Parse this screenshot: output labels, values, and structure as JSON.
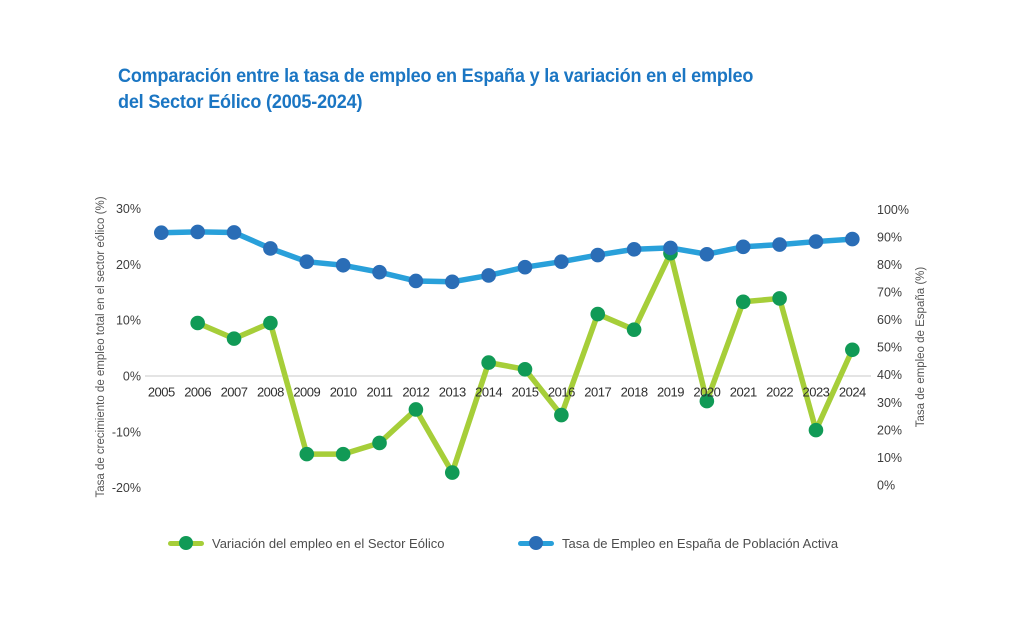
{
  "title": {
    "line1": "Comparación entre la tasa de empleo en España y la variación en el empleo",
    "line2": "del Sector Eólico (2005-2024)"
  },
  "colors": {
    "title_blue": "#1b76c3",
    "wind_line": "#a6ce39",
    "wind_marker": "#119a56",
    "employment_line": "#29a0da",
    "employment_marker": "#2a6db6",
    "gridline": "#c9c9c9",
    "tick_text": "#3d3d3d",
    "year_text": "#2f2f2f"
  },
  "chart_data": {
    "type": "line",
    "x": [
      2005,
      2006,
      2007,
      2008,
      2009,
      2010,
      2011,
      2012,
      2013,
      2014,
      2015,
      2016,
      2017,
      2018,
      2019,
      2020,
      2021,
      2022,
      2023,
      2024
    ],
    "series": [
      {
        "name": "Variación del empleo en el Sector Eólico",
        "axis": "left",
        "unit": "%",
        "values": [
          null,
          9.5,
          6.7,
          9.5,
          -14.0,
          -14.0,
          -12.0,
          -6.0,
          -17.3,
          2.4,
          1.2,
          -7.0,
          11.1,
          8.3,
          22.0,
          -4.5,
          13.3,
          13.9,
          -9.7,
          4.7
        ]
      },
      {
        "name": "Tasa de Empleo en España de Población Activa",
        "axis": "right",
        "unit": "%",
        "values": [
          91.5,
          91.8,
          91.6,
          85.8,
          81.0,
          79.7,
          77.2,
          74.0,
          73.7,
          76.0,
          79.0,
          81.0,
          83.4,
          85.5,
          86.0,
          83.7,
          86.4,
          87.2,
          88.3,
          89.2
        ]
      }
    ],
    "left_axis": {
      "label": "Tasa de crecimiento de empleo total en el sector eólico (%)",
      "min": -20,
      "max": 30,
      "tick_values": [
        30,
        20,
        10,
        0,
        -10,
        -20
      ],
      "tick_labels": [
        "30%",
        "20%",
        "10%",
        "0%",
        "-10%",
        "-20%"
      ]
    },
    "right_axis": {
      "label": "Tasa de empleo de España (%)",
      "min": 0,
      "max": 100,
      "tick_values": [
        100,
        90,
        80,
        70,
        60,
        50,
        40,
        30,
        20,
        10,
        0
      ],
      "tick_labels": [
        "100%",
        "90%",
        "80%",
        "70%",
        "60%",
        "50%",
        "40%",
        "30%",
        "20%",
        "10%",
        "0%"
      ]
    },
    "grid": "horizontal line at left-axis 0% only",
    "legend_position": "bottom"
  },
  "legend": {
    "wind_label": "Variación del empleo en el Sector Eólico",
    "employment_label": "Tasa de Empleo en España de Población Activa"
  }
}
